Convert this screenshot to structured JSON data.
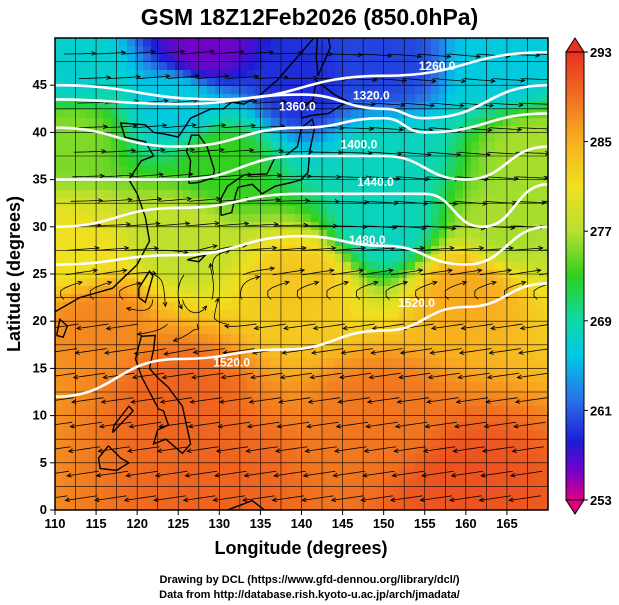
{
  "title": "GSM 18Z12Feb2026 (850.0hPa)",
  "credit_line1": "Drawing by DCL (https://www.gfd-dennou.org/library/dcl/)",
  "credit_line2": "Data from http://database.rish.kyoto-u.ac.jp/arch/jmadata/",
  "chart_data": {
    "type": "heatmap",
    "title": "GSM 18Z12Feb2026 (850.0hPa)",
    "xlabel": "Longitude (degrees)",
    "ylabel": "Latitude (degrees)",
    "xlim": [
      110,
      170
    ],
    "ylim": [
      0,
      50
    ],
    "x_ticks": [
      "110",
      "115",
      "120",
      "125",
      "130",
      "135",
      "140",
      "145",
      "150",
      "155",
      "160",
      "165"
    ],
    "y_ticks": [
      "0",
      "5",
      "10",
      "15",
      "20",
      "25",
      "30",
      "35",
      "40",
      "45"
    ],
    "grid": true,
    "colorbar": {
      "min": 253,
      "max": 293,
      "labels": [
        "293",
        "285",
        "277",
        "269",
        "261",
        "253"
      ],
      "colors": [
        "#e0007f",
        "#7a00c8",
        "#1c1cd6",
        "#2a6ee6",
        "#00c8e6",
        "#10d8a8",
        "#2ed020",
        "#b8e030",
        "#f0e020",
        "#f8b020",
        "#f07020",
        "#e83020"
      ]
    },
    "contours": [
      {
        "label": "1260.0",
        "lon": [
          110,
          130,
          150,
          170
        ],
        "lat": [
          45,
          43.5,
          46,
          48.5
        ]
      },
      {
        "label": "1320.0",
        "lon": [
          110,
          125,
          140,
          150,
          155,
          170
        ],
        "lat": [
          43.5,
          43,
          44,
          42.5,
          41.5,
          45
        ]
      },
      {
        "label": "1360.0",
        "lon": [
          110,
          125,
          140,
          150,
          155,
          170
        ],
        "lat": [
          40.5,
          38.5,
          40.5,
          41.5,
          40,
          42
        ]
      },
      {
        "label": "1400.0",
        "lon": [
          110,
          125,
          140,
          150,
          160,
          170
        ],
        "lat": [
          35,
          35,
          37.5,
          37.5,
          35,
          38.5
        ]
      },
      {
        "label": "1440.0",
        "lon": [
          110,
          125,
          140,
          155,
          162,
          170
        ],
        "lat": [
          30,
          32,
          33.5,
          33.5,
          30,
          34.5
        ]
      },
      {
        "label": "1480.0",
        "lon": [
          110,
          125,
          140,
          150,
          160,
          170
        ],
        "lat": [
          26,
          27,
          29,
          28,
          26,
          30
        ]
      },
      {
        "label": "1520.0",
        "lon": [
          110,
          125,
          138,
          150,
          160,
          170
        ],
        "lat": [
          12,
          16,
          17,
          19,
          21.5,
          24
        ]
      }
    ],
    "contour_labels": [
      {
        "text": "1260.0",
        "lon": 156.5,
        "lat": 46.6
      },
      {
        "text": "1320.0",
        "lon": 148.5,
        "lat": 43.5
      },
      {
        "text": "1360.0",
        "lon": 139.5,
        "lat": 42.3
      },
      {
        "text": "1400.0",
        "lon": 147,
        "lat": 38.3
      },
      {
        "text": "1440.0",
        "lon": 149,
        "lat": 34.3
      },
      {
        "text": "1480.0",
        "lon": 148,
        "lat": 28.2
      },
      {
        "text": "1520.0",
        "lon": 154,
        "lat": 21.5
      },
      {
        "text": "1520.0",
        "lon": 131.5,
        "lat": 15.2
      }
    ],
    "field_anchors": [
      {
        "lon": 128,
        "lat": 49,
        "value": 257
      },
      {
        "lon": 140,
        "lat": 45,
        "value": 261
      },
      {
        "lon": 150,
        "lat": 47,
        "value": 262
      },
      {
        "lon": 165,
        "lat": 47,
        "value": 268
      },
      {
        "lon": 112,
        "lat": 46,
        "value": 269
      },
      {
        "lon": 125,
        "lat": 43,
        "value": 268
      },
      {
        "lon": 112,
        "lat": 40,
        "value": 277
      },
      {
        "lon": 130,
        "lat": 37,
        "value": 275
      },
      {
        "lon": 150,
        "lat": 37,
        "value": 270
      },
      {
        "lon": 168,
        "lat": 38,
        "value": 278
      },
      {
        "lon": 150,
        "lat": 30,
        "value": 270
      },
      {
        "lon": 125,
        "lat": 29,
        "value": 279
      },
      {
        "lon": 112,
        "lat": 27,
        "value": 282
      },
      {
        "lon": 165,
        "lat": 30,
        "value": 278
      },
      {
        "lon": 140,
        "lat": 24,
        "value": 284
      },
      {
        "lon": 115,
        "lat": 20,
        "value": 288
      },
      {
        "lon": 160,
        "lat": 23,
        "value": 286
      },
      {
        "lon": 125,
        "lat": 12,
        "value": 290
      },
      {
        "lon": 150,
        "lat": 10,
        "value": 289
      },
      {
        "lon": 160,
        "lat": 3,
        "value": 291
      },
      {
        "lon": 130,
        "lat": 3,
        "value": 290
      }
    ]
  }
}
